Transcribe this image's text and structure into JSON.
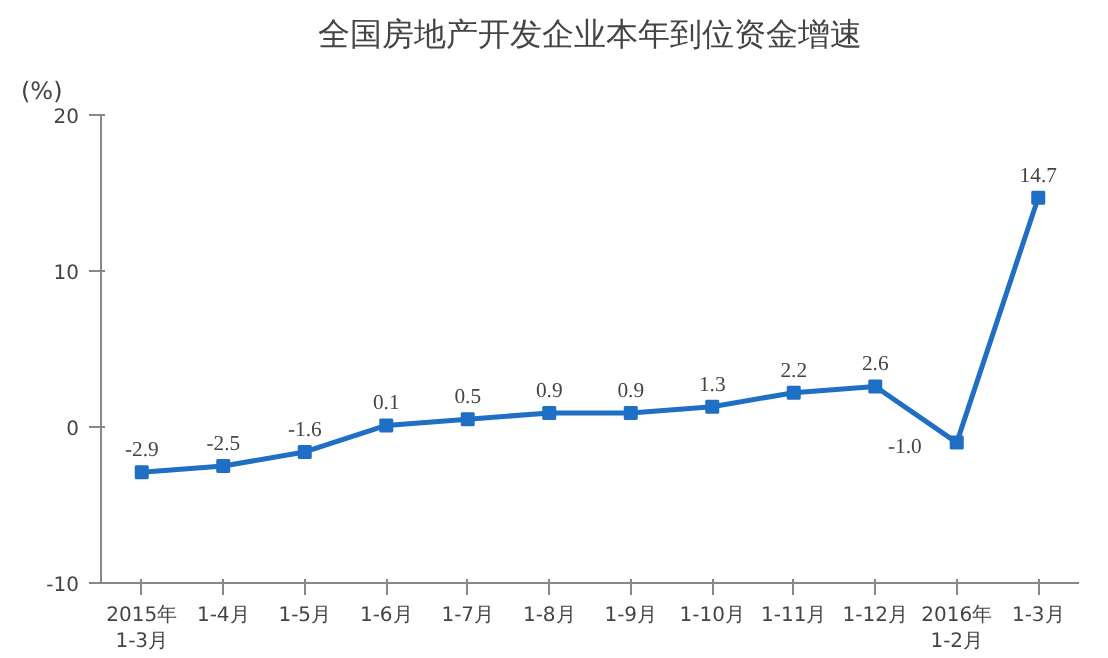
{
  "chart_data": {
    "type": "line",
    "title": "全国房地产开发企业本年到位资金增速",
    "ylabel": "(%)",
    "categories": [
      "2015年\n1-3月",
      "1-4月",
      "1-5月",
      "1-6月",
      "1-7月",
      "1-8月",
      "1-9月",
      "1-10月",
      "1-11月",
      "1-12月",
      "2016年\n1-2月",
      "1-3月"
    ],
    "series": [
      {
        "color": "#1f6fc5",
        "values": [
          -2.9,
          -2.5,
          -1.6,
          0.1,
          0.5,
          0.9,
          0.9,
          1.3,
          2.2,
          2.6,
          -1.0,
          14.7
        ],
        "value_labels": [
          "-2.9",
          "-2.5",
          "-1.6",
          "0.1",
          "0.5",
          "0.9",
          "0.9",
          "1.3",
          "2.2",
          "2.6",
          "-1.0",
          "14.7"
        ]
      }
    ],
    "ylim": [
      -10,
      20
    ],
    "yticks": [
      -10,
      0,
      10,
      20
    ],
    "grid": false,
    "marker": "square",
    "line_style": "solid"
  }
}
